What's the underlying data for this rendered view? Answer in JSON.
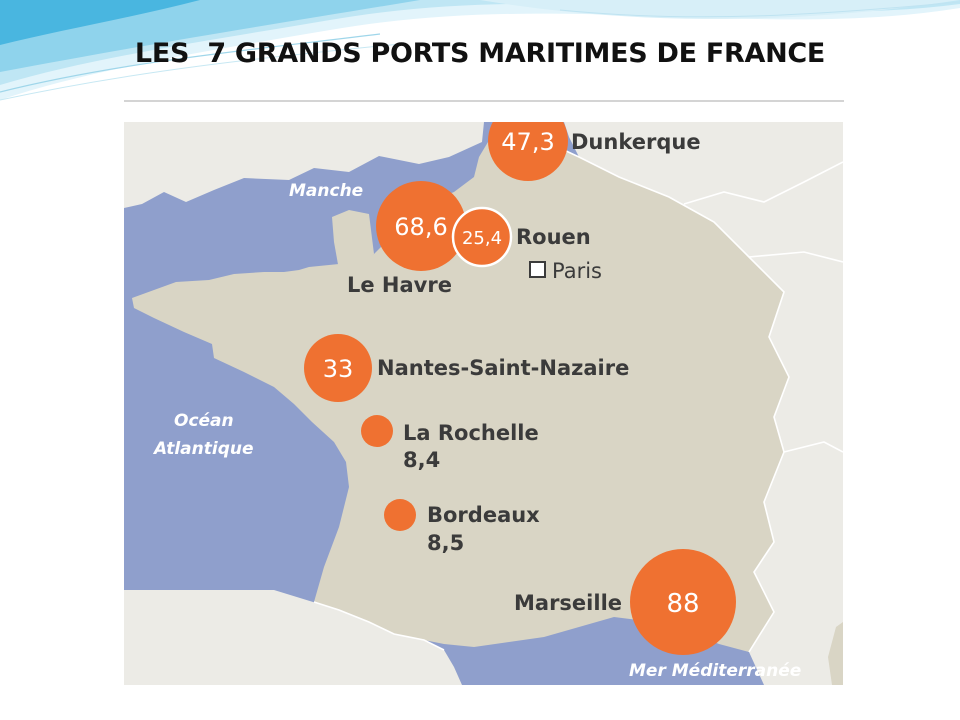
{
  "slide": {
    "title": "LES  7 GRANDS PORTS MARITIMES DE FRANCE"
  },
  "map": {
    "seas": {
      "manche": "Manche",
      "ocean_line1": "Océan",
      "ocean_line2": "Atlantique",
      "mediterranee": "Mer Méditerranée"
    },
    "capital": "Paris",
    "ports": [
      {
        "name": "Dunkerque",
        "value": "47,3"
      },
      {
        "name": "Le Havre",
        "value": "68,6"
      },
      {
        "name": "Rouen",
        "value": "25,4"
      },
      {
        "name": "Nantes-Saint-Nazaire",
        "value": "33"
      },
      {
        "name": "La Rochelle",
        "value": "8,4"
      },
      {
        "name": "Bordeaux",
        "value": "8,5"
      },
      {
        "name": "Marseille",
        "value": "88"
      }
    ],
    "colors": {
      "sea": "#8f9fcc",
      "france": "#d9d5c5",
      "neighbors": "#ecebe6",
      "bubble": "#ef7131"
    }
  }
}
